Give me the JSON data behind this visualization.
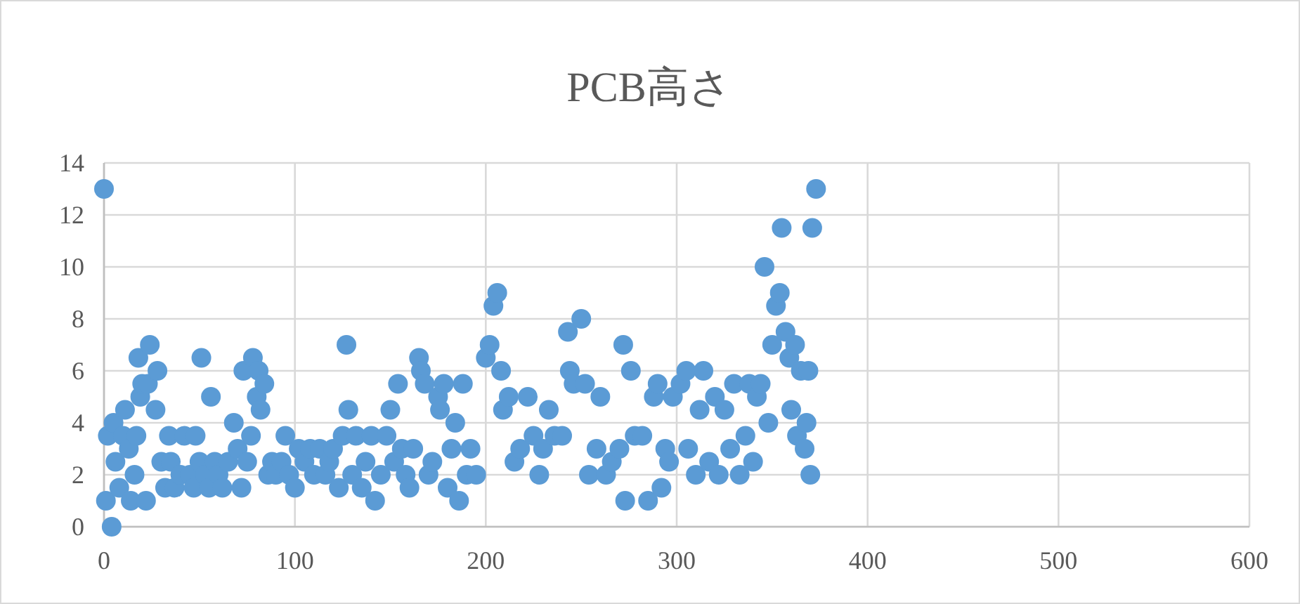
{
  "chart_data": {
    "type": "scatter",
    "title": "PCB高さ",
    "color": "#5b9bd5",
    "marker": "circle",
    "grid": true,
    "xlim": [
      0,
      600
    ],
    "xticks": [
      0,
      100,
      200,
      300,
      400,
      500,
      600
    ],
    "ylim": [
      0,
      14
    ],
    "yticks": [
      0,
      2,
      4,
      6,
      8,
      10,
      12,
      14
    ],
    "x": [
      0,
      1,
      2,
      4,
      5,
      6,
      8,
      10,
      11,
      13,
      14,
      16,
      17,
      18,
      19,
      20,
      22,
      23,
      24,
      27,
      28,
      30,
      32,
      34,
      35,
      37,
      40,
      42,
      45,
      47,
      48,
      50,
      51,
      53,
      55,
      56,
      58,
      60,
      62,
      65,
      68,
      70,
      72,
      73,
      75,
      77,
      78,
      80,
      81,
      82,
      84,
      86,
      88,
      90,
      93,
      95,
      97,
      100,
      102,
      105,
      108,
      110,
      113,
      116,
      118,
      120,
      123,
      125,
      127,
      128,
      130,
      132,
      135,
      137,
      140,
      142,
      145,
      148,
      150,
      152,
      154,
      156,
      158,
      160,
      162,
      165,
      166,
      168,
      170,
      172,
      175,
      176,
      178,
      180,
      182,
      184,
      186,
      188,
      190,
      192,
      195,
      200,
      202,
      204,
      206,
      208,
      209,
      212,
      215,
      218,
      222,
      225,
      228,
      230,
      233,
      236,
      240,
      243,
      244,
      246,
      250,
      252,
      254,
      258,
      260,
      263,
      266,
      270,
      272,
      273,
      276,
      278,
      282,
      285,
      288,
      290,
      292,
      294,
      296,
      298,
      302,
      305,
      306,
      310,
      312,
      314,
      317,
      320,
      322,
      325,
      328,
      330,
      333,
      336,
      338,
      340,
      342,
      344,
      346,
      348,
      350,
      352,
      354,
      355,
      357,
      359,
      360,
      362,
      363,
      365,
      367,
      368,
      369,
      370,
      371,
      373
    ],
    "values": [
      13,
      1,
      3.5,
      0,
      4,
      2.5,
      1.5,
      3.5,
      4.5,
      3,
      1,
      2,
      3.5,
      6.5,
      5,
      5.5,
      1,
      5.5,
      7,
      4.5,
      6,
      2.5,
      1.5,
      3.5,
      2.5,
      1.5,
      2,
      3.5,
      2,
      1.5,
      3.5,
      2.5,
      6.5,
      2,
      1.5,
      5,
      2.5,
      2,
      1.5,
      2.5,
      4,
      3,
      1.5,
      6,
      2.5,
      3.5,
      6.5,
      5,
      6,
      4.5,
      5.5,
      2,
      2.5,
      2,
      2.5,
      3.5,
      2,
      1.5,
      3,
      2.5,
      3,
      2,
      3,
      2,
      2.5,
      3,
      1.5,
      3.5,
      7,
      4.5,
      2,
      3.5,
      1.5,
      2.5,
      3.5,
      1,
      2,
      3.5,
      4.5,
      2.5,
      5.5,
      3,
      2,
      1.5,
      3,
      6.5,
      6,
      5.5,
      2,
      2.5,
      5,
      4.5,
      5.5,
      1.5,
      3,
      4,
      1,
      5.5,
      2,
      3,
      2,
      6.5,
      7,
      8.5,
      9,
      6,
      4.5,
      5,
      2.5,
      3,
      5,
      3.5,
      2,
      3,
      4.5,
      3.5,
      3.5,
      7.5,
      6,
      5.5,
      8,
      5.5,
      2,
      3,
      5,
      2,
      2.5,
      3,
      7,
      1,
      6,
      3.5,
      3.5,
      1,
      5,
      5.5,
      1.5,
      3,
      2.5,
      5,
      5.5,
      6,
      3,
      2,
      4.5,
      6,
      2.5,
      5,
      2,
      4.5,
      3,
      5.5,
      2,
      3.5,
      5.5,
      2.5,
      5,
      5.5,
      10,
      4,
      7,
      8.5,
      9,
      11.5,
      7.5,
      6.5,
      4.5,
      7,
      3.5,
      6,
      3,
      4,
      6,
      2,
      11.5,
      13
    ]
  }
}
